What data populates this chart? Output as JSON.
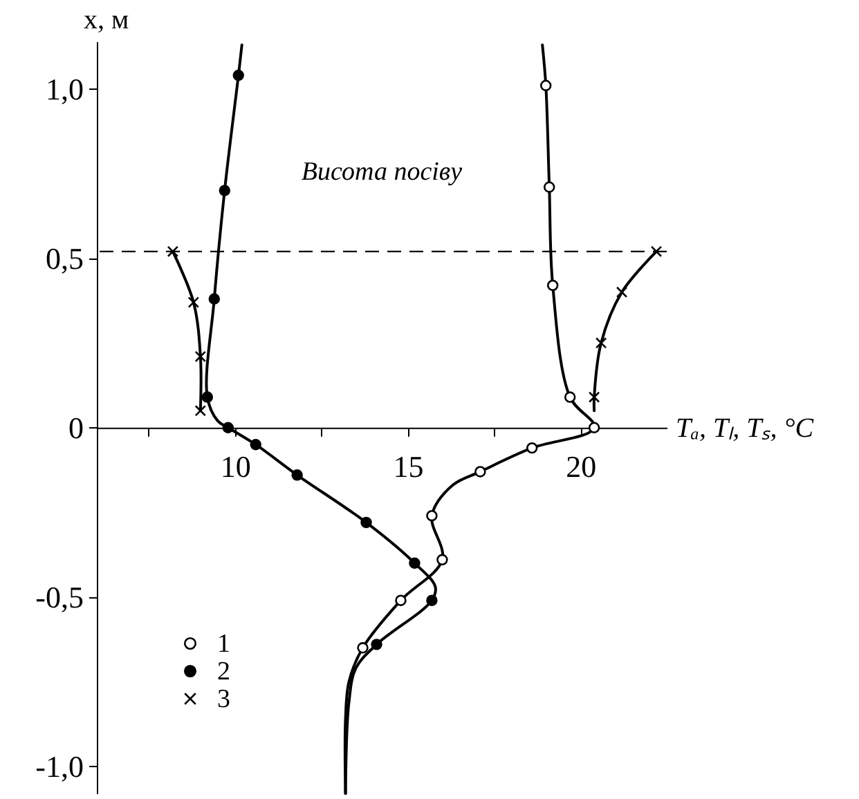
{
  "chart_data": {
    "type": "line",
    "xlabel": "Tₐ, Tₗ, Tₛ, °C",
    "ylabel": "x, м",
    "xlim": [
      6,
      22.5
    ],
    "ylim": [
      -1.08,
      1.14
    ],
    "xticks": [
      {
        "value": 7.5,
        "label": null
      },
      10,
      {
        "value": 12.5,
        "label": null
      },
      15,
      {
        "value": 17.5,
        "label": null
      },
      20
    ],
    "yticks": [
      {
        "value": -1,
        "label": "-1,0"
      },
      {
        "value": -0.5,
        "label": "-0,5"
      },
      0,
      {
        "value": 0.5,
        "label": "0,5"
      },
      {
        "value": 1,
        "label": "1,0"
      }
    ],
    "legend": "bottom left",
    "ref_lines": [
      {
        "axis": "y",
        "value": 0.52,
        "label": "Висота посіву",
        "line_style": "dashed",
        "color": "#000000"
      }
    ],
    "series": [
      {
        "color": "#000000",
        "marker": "none",
        "x": [
          18.9,
          19.0,
          19.1,
          19.2,
          19.7,
          20.4,
          18.6,
          17.1,
          16.3,
          15.7,
          16.0,
          14.8,
          13.7,
          13.3,
          13.2,
          13.2
        ],
        "values": [
          1.13,
          1.01,
          0.71,
          0.42,
          0.09,
          0.0,
          -0.06,
          -0.13,
          -0.17,
          -0.26,
          -0.39,
          -0.51,
          -0.65,
          -0.75,
          -0.86,
          -1.08
        ]
      },
      {
        "color": "#000000",
        "marker": "none",
        "x": [
          10.2,
          10.1,
          9.7,
          9.4,
          9.2,
          9.5,
          9.8,
          10.6,
          11.8,
          13.8,
          15.2,
          15.8,
          15.7,
          14.1,
          13.5,
          13.3,
          13.2
        ],
        "values": [
          1.13,
          1.04,
          0.7,
          0.38,
          0.09,
          0.02,
          0.0,
          -0.05,
          -0.14,
          -0.28,
          -0.4,
          -0.47,
          -0.51,
          -0.64,
          -0.71,
          -0.81,
          -1.08
        ]
      },
      {
        "color": "#000000",
        "marker": "none",
        "x": [
          8.2,
          8.8,
          9.0,
          9.0
        ],
        "values": [
          0.52,
          0.37,
          0.21,
          0.05
        ]
      },
      {
        "color": "#000000",
        "marker": "none",
        "x": [
          22.2,
          21.2,
          20.6,
          20.4,
          20.4
        ],
        "values": [
          0.52,
          0.4,
          0.25,
          0.09,
          0.05
        ]
      },
      {
        "type": "scatter",
        "name": "1",
        "color": "#ffffff",
        "marker": "circle",
        "x": [
          19.0,
          19.1,
          19.2,
          19.7,
          20.4,
          18.6,
          17.1,
          15.7,
          16.0,
          14.8,
          13.7
        ],
        "values": [
          1.01,
          0.71,
          0.42,
          0.09,
          0.0,
          -0.06,
          -0.13,
          -0.26,
          -0.39,
          -0.51,
          -0.65
        ]
      },
      {
        "type": "scatter",
        "name": "2",
        "color": "#000000",
        "marker": "circle",
        "x": [
          10.1,
          9.7,
          9.4,
          9.2,
          9.8,
          10.6,
          11.8,
          13.8,
          15.2,
          15.7,
          14.1
        ],
        "values": [
          1.04,
          0.7,
          0.38,
          0.09,
          0.0,
          -0.05,
          -0.14,
          -0.28,
          -0.4,
          -0.51,
          -0.64
        ]
      },
      {
        "type": "scatter",
        "name": "3",
        "color": "#000000",
        "marker": "cross",
        "x": [
          8.2,
          8.8,
          9.0,
          9.0,
          22.2,
          21.2,
          20.6,
          20.4
        ],
        "values": [
          0.52,
          0.37,
          0.21,
          0.05,
          0.52,
          0.4,
          0.25,
          0.09
        ]
      }
    ]
  }
}
